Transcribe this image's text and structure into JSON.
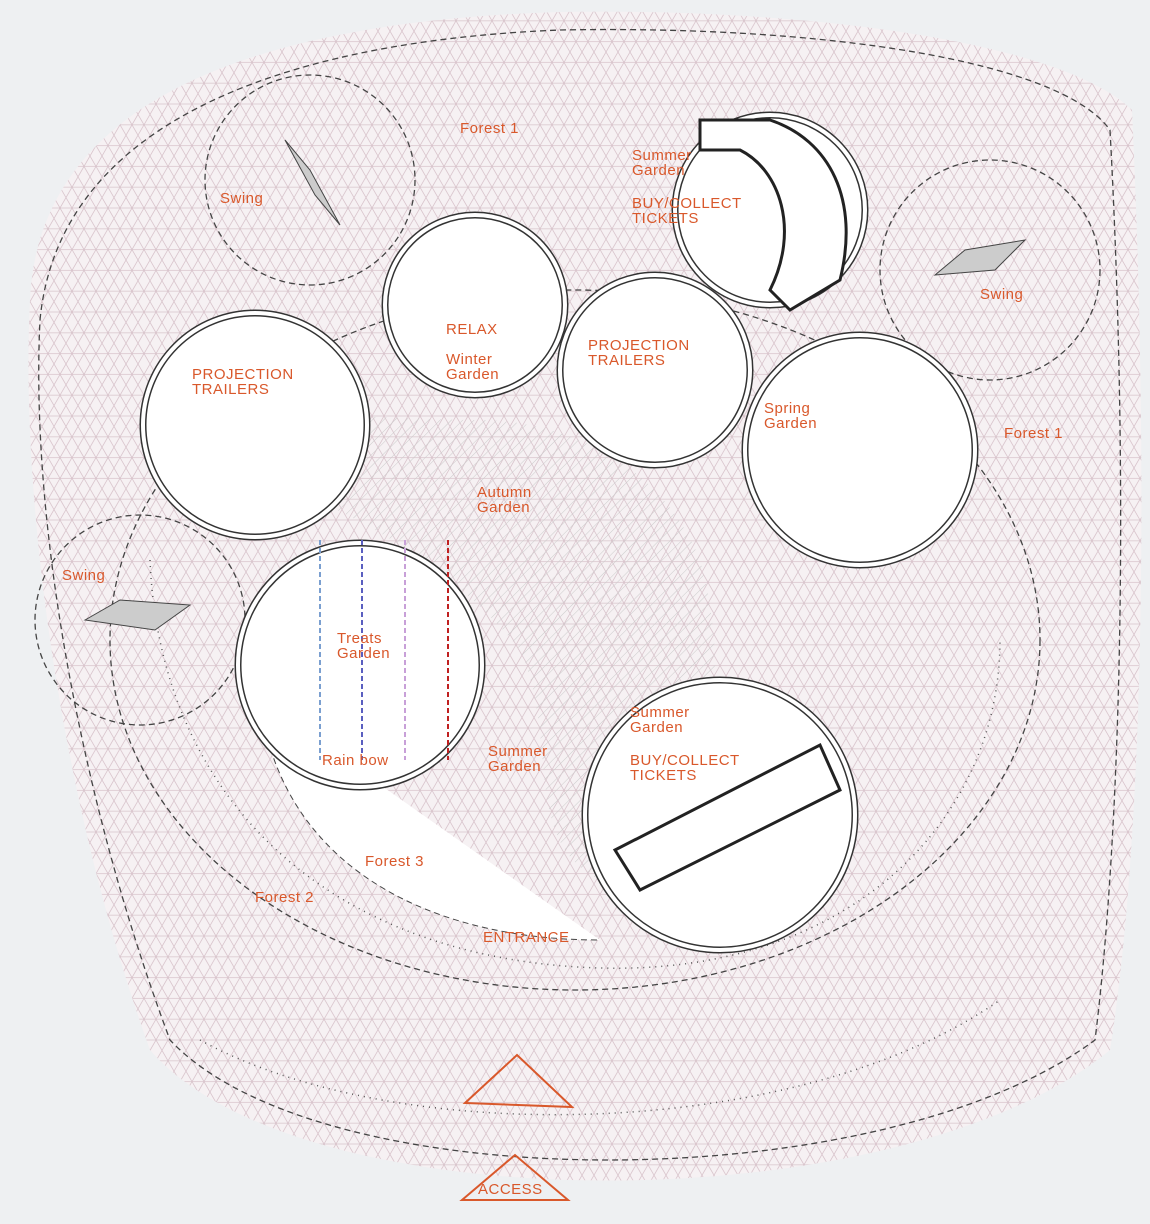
{
  "plan": {
    "labels": [
      {
        "lines": [
          "Forest 1"
        ]
      },
      {
        "lines": [
          "Summer",
          "Garden"
        ]
      },
      {
        "lines": [
          "BUY/COLLECT",
          "TICKETS"
        ]
      },
      {
        "lines": [
          "Swing"
        ]
      },
      {
        "lines": [
          "RELAX"
        ]
      },
      {
        "lines": [
          "Winter",
          "Garden"
        ]
      },
      {
        "lines": [
          "PROJECTION",
          "TRAILERS"
        ]
      },
      {
        "lines": [
          "PROJECTION",
          "TRAILERS"
        ]
      },
      {
        "lines": [
          "Swing"
        ]
      },
      {
        "lines": [
          "Spring",
          "Garden"
        ]
      },
      {
        "lines": [
          "Forest 1"
        ]
      },
      {
        "lines": [
          "Autumn",
          "Garden"
        ]
      },
      {
        "lines": [
          "Swing"
        ]
      },
      {
        "lines": [
          "Treats",
          "Garden"
        ]
      },
      {
        "lines": [
          "Rain bow"
        ]
      },
      {
        "lines": [
          "Summer",
          "Garden"
        ]
      },
      {
        "lines": [
          "Summer",
          "Garden"
        ]
      },
      {
        "lines": [
          "BUY/COLLECT",
          "TICKETS"
        ]
      },
      {
        "lines": [
          "Forest 3"
        ]
      },
      {
        "lines": [
          "Forest 2"
        ]
      },
      {
        "lines": [
          "ENTRANCE"
        ]
      },
      {
        "lines": [
          "ACCESS"
        ]
      }
    ]
  }
}
